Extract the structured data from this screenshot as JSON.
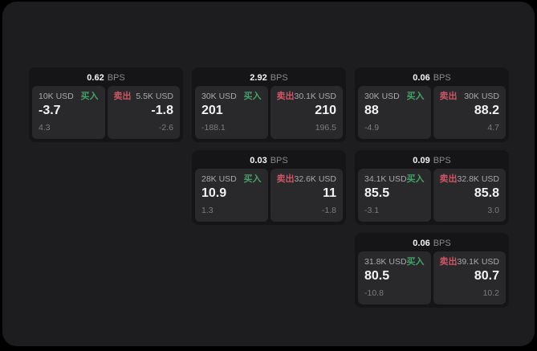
{
  "labels": {
    "buy": "买入",
    "sell": "卖出",
    "bps_unit": "BPS"
  },
  "colors": {
    "background_outer": "#000000",
    "background_window": "#1d1d1f",
    "card": "#151517",
    "panel": "#29292b",
    "buy_accent": "#44a169",
    "sell_accent": "#cd5565",
    "value_text": "#f2f2f3",
    "sub_text": "#7c7c80",
    "amount_text": "#a9a9ad"
  },
  "cards": [
    {
      "bps": "0.62",
      "col": 1,
      "row": 1,
      "buy": {
        "amount": "10K USD",
        "value": "-3.7",
        "sub": "4.3"
      },
      "sell": {
        "amount": "5.5K USD",
        "value": "-1.8",
        "sub": "-2.6"
      }
    },
    {
      "bps": "2.92",
      "col": 2,
      "row": 1,
      "buy": {
        "amount": "30K USD",
        "value": "201",
        "sub": "-188.1"
      },
      "sell": {
        "amount": "30.1K USD",
        "value": "210",
        "sub": "196.5"
      }
    },
    {
      "bps": "0.06",
      "col": 3,
      "row": 1,
      "buy": {
        "amount": "30K USD",
        "value": "88",
        "sub": "-4.9"
      },
      "sell": {
        "amount": "30K USD",
        "value": "88.2",
        "sub": "4.7"
      }
    },
    {
      "bps": "0.03",
      "col": 2,
      "row": 2,
      "buy": {
        "amount": "28K USD",
        "value": "10.9",
        "sub": "1.3"
      },
      "sell": {
        "amount": "32.6K USD",
        "value": "11",
        "sub": "-1.8"
      }
    },
    {
      "bps": "0.09",
      "col": 3,
      "row": 2,
      "buy": {
        "amount": "34.1K USD",
        "value": "85.5",
        "sub": "-3.1"
      },
      "sell": {
        "amount": "32.8K USD",
        "value": "85.8",
        "sub": "3.0"
      }
    },
    {
      "bps": "0.06",
      "col": 3,
      "row": 3,
      "buy": {
        "amount": "31.8K USD",
        "value": "80.5",
        "sub": "-10.8"
      },
      "sell": {
        "amount": "39.1K USD",
        "value": "80.7",
        "sub": "10.2"
      }
    }
  ]
}
